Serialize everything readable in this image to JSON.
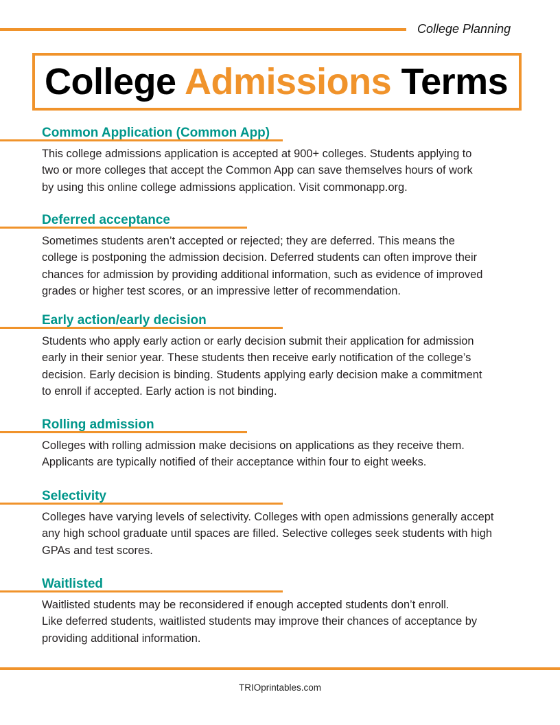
{
  "header": {
    "category": "College Planning",
    "title_part1": "College ",
    "title_accent": "Admissions",
    "title_part2": " Terms"
  },
  "colors": {
    "accent": "#f0932b",
    "heading": "#00968a"
  },
  "sections": [
    {
      "title": "Common Application (Common App)",
      "lines": [
        "This college admissions application is accepted at 900+ colleges. Students applying to",
        "two or more colleges that accept the Common App can save themselves hours of work",
        "by using this online college admissions application.  Visit commonapp.org."
      ]
    },
    {
      "title": "Deferred acceptance",
      "lines": [
        "Sometimes students aren’t accepted or rejected; they are deferred. This means the",
        "college is postponing the admission decision. Deferred students can often improve their",
        "chances for admission by providing additional information, such as evidence of improved",
        "grades or higher test scores, or an impressive letter of recommendation."
      ]
    },
    {
      "title": "Early action/early decision",
      "lines": [
        "Students who apply early action or early decision submit their application for admission",
        "early in their senior year. These students then receive early notification of the college’s",
        "decision. Early decision is binding. Students applying early decision make a commitment",
        "to enroll if accepted. Early action is not binding."
      ]
    },
    {
      "title": "Rolling admission",
      "lines": [
        "Colleges with rolling admission make decisions on applications as they receive them.",
        "Applicants are typically notified of their acceptance within four to eight weeks."
      ]
    },
    {
      "title": "Selectivity",
      "lines": [
        "Colleges have varying levels of selectivity. Colleges with open admissions generally accept",
        "any high school graduate until spaces are filled. Selective colleges seek students with high",
        "GPAs and test scores."
      ]
    },
    {
      "title": "Waitlisted",
      "lines": [
        "Waitlisted students may be reconsidered if enough accepted students don’t enroll.",
        "Like deferred students, waitlisted students may improve their chances of acceptance by",
        "providing additional information."
      ]
    }
  ],
  "footer": {
    "text": "TRIOprintables.com"
  }
}
